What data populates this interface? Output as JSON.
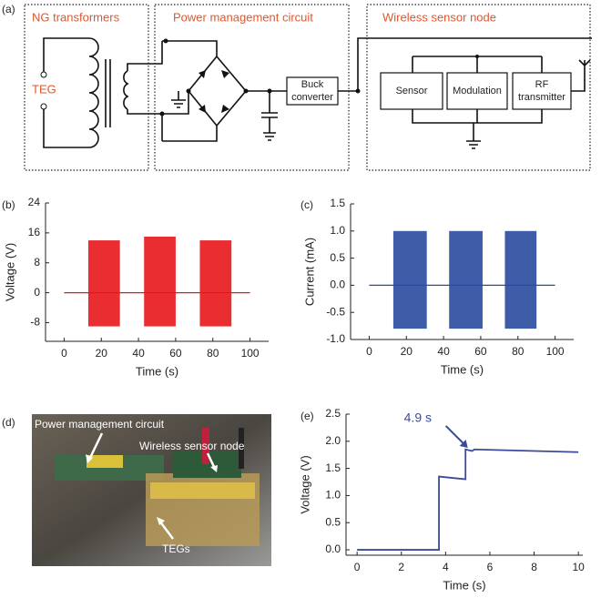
{
  "diagram": {
    "label": "(a)",
    "sections": [
      "NG transformers",
      "Power management circuit",
      "Wireless sensor node"
    ],
    "source": "TEG",
    "converter": [
      "Buck",
      "converter"
    ],
    "blocks": [
      [
        "Sensor"
      ],
      [
        "Modulation"
      ],
      [
        "RF",
        "transmitter"
      ]
    ]
  },
  "photo": {
    "label": "(d)",
    "annotations": [
      "Power management circuit",
      "Wireless sensor node",
      "TEGs"
    ]
  },
  "chart_data": [
    {
      "type": "burst",
      "label": "(b)",
      "xlabel": "Time (s)",
      "ylabel": "Voltage (V)",
      "color": "#e8161b",
      "xlim": [
        -10,
        110
      ],
      "xticks": [
        0,
        20,
        40,
        60,
        80,
        100
      ],
      "ylim": [
        -13,
        24
      ],
      "yticks": [
        -8,
        0,
        8,
        16,
        24
      ],
      "baseline": {
        "x": [
          0,
          100
        ],
        "values": [
          0,
          0
        ]
      },
      "bursts": [
        {
          "x": [
            13,
            30
          ],
          "max": 14,
          "min": -9
        },
        {
          "x": [
            43,
            60
          ],
          "max": 15,
          "min": -9
        },
        {
          "x": [
            73,
            90
          ],
          "max": 14,
          "min": -9
        }
      ]
    },
    {
      "type": "burst",
      "label": "(c)",
      "xlabel": "Time (s)",
      "ylabel": "Current (mA)",
      "color": "#2a4aa0",
      "xlim": [
        -10,
        110
      ],
      "xticks": [
        0,
        20,
        40,
        60,
        80,
        100
      ],
      "ylim": [
        -1,
        1.5
      ],
      "yticks": [
        {
          "value": -1,
          "label": "-1.0"
        },
        {
          "value": -0.5,
          "label": "-0.5"
        },
        {
          "value": 0,
          "label": "0.0"
        },
        {
          "value": 0.5,
          "label": "0.5"
        },
        {
          "value": 1,
          "label": "1.0"
        },
        {
          "value": 1.5,
          "label": "1.5"
        }
      ],
      "baseline": {
        "x": [
          0,
          100
        ],
        "values": [
          0,
          0
        ]
      },
      "bursts": [
        {
          "x": [
            13,
            31
          ],
          "max": 1.0,
          "min": -0.8
        },
        {
          "x": [
            43,
            61
          ],
          "max": 1.0,
          "min": -0.8
        },
        {
          "x": [
            73,
            90
          ],
          "max": 1.0,
          "min": -0.8
        }
      ]
    },
    {
      "type": "line",
      "label": "(e)",
      "xlabel": "Time (s)",
      "ylabel": "Voltage (V)",
      "color": "#3b4a9a",
      "xlim": [
        -0.5,
        10.2
      ],
      "xticks": [
        0,
        2,
        4,
        6,
        8,
        10
      ],
      "ylim": [
        -0.1,
        2.5
      ],
      "yticks": [
        {
          "value": 0,
          "label": "0.0"
        },
        {
          "value": 0.5,
          "label": "0.5"
        },
        {
          "value": 1,
          "label": "1.0"
        },
        {
          "value": 1.5,
          "label": "1.5"
        },
        {
          "value": 2,
          "label": "2.0"
        },
        {
          "value": 2.5,
          "label": "2.5"
        }
      ],
      "x": [
        0,
        3.7,
        3.7,
        4.9,
        4.9,
        5.2,
        5.3,
        10
      ],
      "values": [
        0,
        0,
        1.35,
        1.3,
        1.85,
        1.82,
        1.85,
        1.8
      ],
      "annotation": {
        "text": "4.9 s",
        "x": 5.0,
        "y": 1.88
      }
    }
  ]
}
